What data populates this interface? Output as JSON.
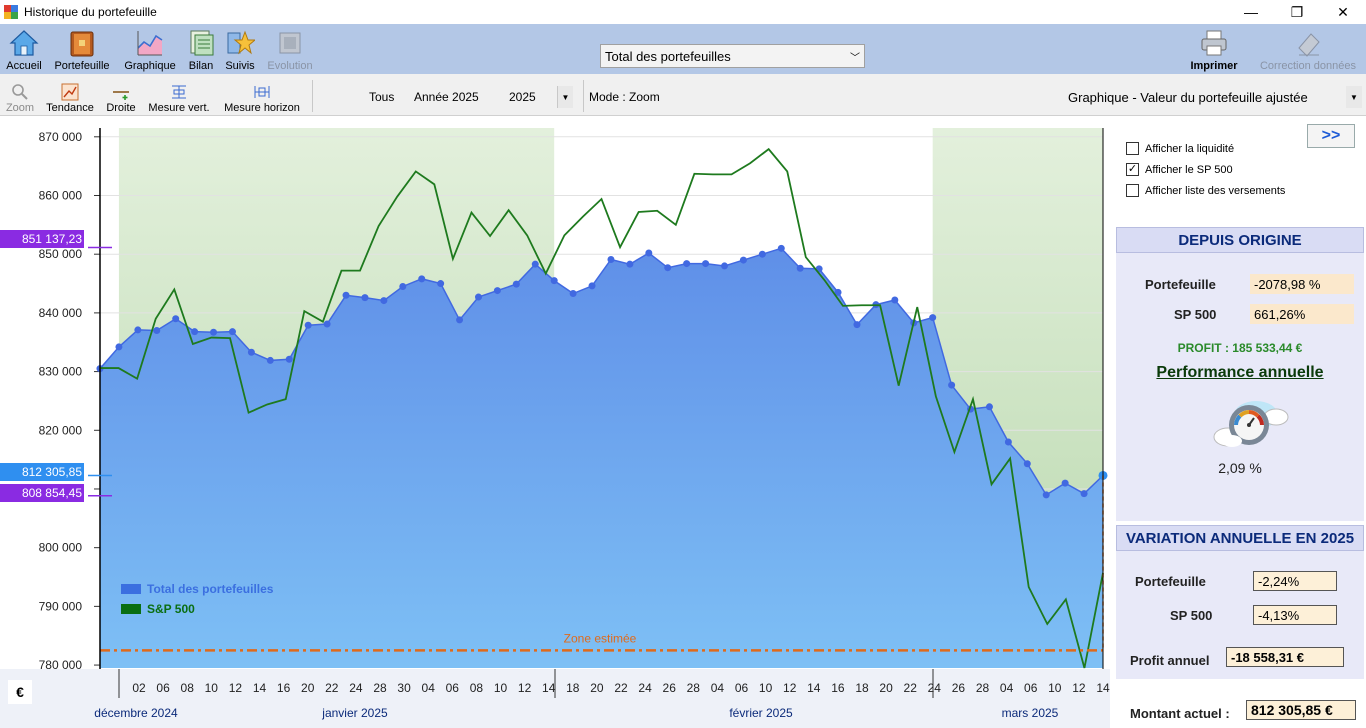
{
  "window": {
    "title": "Historique du portefeuille",
    "controls": {
      "minimize": "—",
      "maximize": "❐",
      "close": "✕"
    }
  },
  "toolbar": {
    "buttons": [
      {
        "label": "Accueil",
        "icon": "home-icon"
      },
      {
        "label": "Portefeuille",
        "icon": "wallet-icon"
      },
      {
        "label": "Graphique",
        "icon": "chart-icon"
      },
      {
        "label": "Bilan",
        "icon": "bilan-icon"
      },
      {
        "label": "Suivis",
        "icon": "star-icon"
      },
      {
        "label": "Evolution",
        "icon": "evolution-icon"
      }
    ],
    "portfolio_select": "Total des portefeuilles",
    "print_label": "Imprimer",
    "correction_label": "Correction données"
  },
  "toolbar2": {
    "zoom_label": "Zoom",
    "tendance_label": "Tendance",
    "droite_label": "Droite",
    "mesure_vert_label": "Mesure vert.",
    "mesure_horizon_label": "Mesure horizon",
    "tous_label": "Tous",
    "annee_label": "Année 2025",
    "year_value": "2025",
    "mode_label": "Mode : Zoom",
    "graph_select": "Graphique - Valeur du portefeuille ajustée"
  },
  "side_labels": {
    "top_value": "851 137,23",
    "current_value": "812 305,85",
    "low_value": "808 854,45",
    "currency": "€"
  },
  "chart_data": {
    "type": "area",
    "y_tick_labels": [
      "870 000",
      "860 000",
      "850 000",
      "840 000",
      "830 000",
      "820 000",
      "810 000",
      "800 000",
      "790 000",
      "780 000"
    ],
    "y_ticks": [
      870000,
      860000,
      850000,
      840000,
      830000,
      820000,
      810000,
      800000,
      790000,
      780000
    ],
    "ylim": [
      779500,
      871500
    ],
    "x_tick_labels": [
      "02",
      "06",
      "08",
      "10",
      "12",
      "14",
      "16",
      "20",
      "22",
      "24",
      "28",
      "30",
      "04",
      "06",
      "08",
      "10",
      "12",
      "14",
      "18",
      "20",
      "22",
      "24",
      "26",
      "28",
      "04",
      "06",
      "10",
      "12",
      "14",
      "16",
      "18",
      "20",
      "22",
      "24",
      "26",
      "28",
      "04",
      "06",
      "10",
      "12",
      "14"
    ],
    "month_labels": [
      "décembre 2024",
      "janvier 2025",
      "février 2025",
      "mars 2025"
    ],
    "legend": [
      {
        "name": "Total des portefeuilles",
        "color": "#3b6fe0"
      },
      {
        "name": "S&P 500",
        "color": "#0a6e12"
      }
    ],
    "annotation": "Zone estimée",
    "series": [
      {
        "name": "Total des portefeuilles",
        "color": "#4169e1",
        "values": [
          830500,
          834200,
          837100,
          837000,
          839000,
          836800,
          836700,
          836800,
          833300,
          831900,
          832100,
          837900,
          838100,
          843000,
          842600,
          842100,
          844500,
          845800,
          845000,
          838800,
          842700,
          843800,
          844900,
          848300,
          845500,
          843300,
          844600,
          849100,
          848300,
          850200,
          847700,
          848400,
          848400,
          848000,
          849000,
          850000,
          851000,
          847600,
          847500,
          843500,
          838000,
          841400,
          842200,
          838300,
          839200,
          827700,
          823600,
          824000,
          818000,
          814300,
          809000,
          811000,
          809200,
          812300
        ]
      },
      {
        "name": "S&P 500",
        "color": "#1e7a1e",
        "values": [
          830600,
          830600,
          828800,
          839000,
          844000,
          834700,
          835800,
          835700,
          823000,
          824400,
          825300,
          840300,
          838500,
          847200,
          847200,
          854800,
          859800,
          864100,
          861900,
          849200,
          857100,
          853100,
          857500,
          853200,
          846700,
          853200,
          856400,
          859400,
          851200,
          857200,
          857400,
          855000,
          863700,
          863600,
          863600,
          865500,
          867900,
          864100,
          849500,
          845600,
          841200,
          841300,
          841300,
          827600,
          841000,
          825800,
          816300,
          825300,
          810800,
          815200,
          793300,
          787000,
          791200,
          779500,
          795700
        ]
      }
    ],
    "shaded_zones": [
      {
        "from_index": 1,
        "to_index": 24
      },
      {
        "from_index": 44,
        "to_index": 53
      }
    ],
    "estimated_level": 782500
  },
  "right_panel": {
    "checkboxes": [
      {
        "label": "Afficher la liquidité",
        "checked": false
      },
      {
        "label": "Afficher le SP 500",
        "checked": true
      },
      {
        "label": "Afficher liste des versements",
        "checked": false
      }
    ],
    "expand_label": ">>",
    "depuis_origine": {
      "title": "DEPUIS ORIGINE",
      "portefeuille_label": "Portefeuille",
      "portefeuille_value": "-2078,98 %",
      "sp500_label": "SP 500",
      "sp500_value": "661,26%",
      "profit": "PROFIT : 185 533,44 €",
      "performance_label": "Performance annuelle",
      "performance_value": "2,09 %"
    },
    "variation": {
      "title": "VARIATION ANNUELLE EN 2025",
      "portefeuille_label": "Portefeuille",
      "portefeuille_value": "-2,24%",
      "sp500_label": "SP 500",
      "sp500_value": "-4,13%",
      "profit_label": "Profit annuel",
      "profit_value": "-18 558,31 €"
    },
    "montant_label": "Montant actuel :",
    "montant_value": "812 305,85 €"
  }
}
